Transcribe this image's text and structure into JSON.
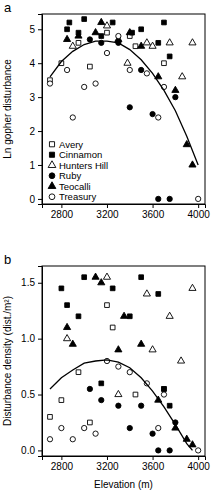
{
  "chart_data": [
    {
      "type": "scatter",
      "title": "a",
      "y_label": "Ln gopher disturbance",
      "xlim": [
        2630,
        4060
      ],
      "xticks": [
        2800,
        3200,
        3600,
        4000
      ],
      "ylim": [
        -0.15,
        5.45
      ],
      "yticks": [
        0,
        1,
        2,
        3,
        4,
        5
      ],
      "grid": false,
      "legend": "lower left",
      "series": [
        {
          "name": "Avery",
          "marker": "square-open",
          "color": "#000000",
          "x": [
            2700,
            2800,
            2950,
            3050,
            3200,
            3400,
            3450,
            3700
          ],
          "values": [
            3.5,
            4.0,
            4.6,
            3.9,
            4.9,
            4.8,
            4.5,
            4.0
          ]
        },
        {
          "name": "Cinnamon",
          "marker": "square",
          "color": "#000000",
          "x": [
            2850,
            2870,
            2950,
            3000,
            3150,
            3250,
            3420,
            3500,
            3650,
            3700,
            3750
          ],
          "values": [
            5.0,
            5.2,
            4.9,
            5.3,
            4.8,
            5.2,
            4.9,
            5.0,
            4.6,
            5.2,
            4.2
          ]
        },
        {
          "name": "Hunters Hill",
          "marker": "triangle-open",
          "color": "#000000",
          "x": [
            2900,
            3200,
            3380,
            3550,
            3600,
            3750,
            3860,
            3950
          ],
          "values": [
            4.5,
            5.1,
            4.0,
            4.6,
            4.5,
            4.6,
            3.6,
            4.6
          ]
        },
        {
          "name": "Ruby",
          "marker": "circle",
          "color": "#000000",
          "x": [
            3050,
            3150,
            3300,
            3400,
            3500,
            3600,
            3650,
            3750,
            3800
          ],
          "values": [
            4.7,
            4.6,
            4.6,
            2.7,
            3.8,
            2.5,
            0.0,
            0.0,
            3.0
          ]
        },
        {
          "name": "Teocalli",
          "marker": "triangle",
          "color": "#000000",
          "x": [
            2850,
            2950,
            3100,
            3150,
            3300,
            3400,
            3500,
            3650,
            3800,
            3900,
            3950
          ],
          "values": [
            4.7,
            4.8,
            4.9,
            5.2,
            4.7,
            4.9,
            4.5,
            3.6,
            3.2,
            1.6,
            1.0
          ]
        },
        {
          "name": "Treasury",
          "marker": "circle-open",
          "color": "#000000",
          "x": [
            2700,
            2850,
            2900,
            3000,
            3100,
            3200,
            3300,
            3400,
            3550,
            3650,
            3700,
            4000
          ],
          "values": [
            3.4,
            3.8,
            2.4,
            3.3,
            3.4,
            4.3,
            4.8,
            3.8,
            3.7,
            2.4,
            3.3,
            0.0
          ]
        },
        {
          "type": "line",
          "color": "#000000",
          "x": [
            2700,
            2800,
            2900,
            3000,
            3100,
            3200,
            3300,
            3400,
            3500,
            3600,
            3700,
            3800,
            3900,
            4000
          ],
          "values": [
            3.6,
            4.05,
            4.35,
            4.55,
            4.65,
            4.65,
            4.6,
            4.4,
            4.1,
            3.7,
            3.2,
            2.6,
            1.85,
            1.0
          ]
        }
      ]
    },
    {
      "type": "scatter",
      "title": "b",
      "x_label": "Elevation (m)",
      "y_label": "Disturbance density (dist./m²)",
      "xlim": [
        2630,
        4060
      ],
      "xticks": [
        2800,
        3200,
        3600,
        4000
      ],
      "ylim": [
        -0.05,
        1.65
      ],
      "yticks": [
        {
          "value": 0,
          "label": "0.0"
        },
        0.5,
        {
          "value": 1,
          "label": "1.0"
        },
        1.5
      ],
      "grid": false,
      "series": [
        {
          "name": "Avery",
          "marker": "square-open",
          "color": "#000000",
          "x": [
            2700,
            2800,
            2950,
            3050,
            3200,
            3250,
            3450,
            3700
          ],
          "values": [
            0.3,
            0.45,
            0.7,
            0.25,
            1.3,
            1.1,
            0.5,
            0.55
          ]
        },
        {
          "name": "Cinnamon",
          "marker": "square",
          "color": "#000000",
          "x": [
            2800,
            2850,
            2950,
            3000,
            3150,
            3250,
            3400,
            3500,
            3650,
            3700,
            3750
          ],
          "values": [
            1.45,
            1.3,
            1.2,
            1.55,
            0.6,
            1.45,
            1.2,
            1.55,
            1.4,
            0.55,
            0.4
          ]
        },
        {
          "name": "Hunters Hill",
          "marker": "triangle-open",
          "color": "#000000",
          "x": [
            2850,
            3200,
            3300,
            3550,
            3600,
            3750,
            3850,
            3950
          ],
          "values": [
            1.0,
            1.55,
            0.5,
            1.4,
            0.9,
            1.2,
            0.8,
            1.45
          ]
        },
        {
          "name": "Ruby",
          "marker": "circle",
          "color": "#000000",
          "x": [
            3050,
            3150,
            3300,
            3400,
            3500,
            3600,
            3650,
            3750,
            3800
          ],
          "values": [
            0.55,
            0.45,
            0.4,
            0.2,
            0.4,
            0.15,
            0.0,
            0.0,
            0.25
          ]
        },
        {
          "name": "Teocalli",
          "marker": "triangle",
          "color": "#000000",
          "x": [
            2850,
            2900,
            3100,
            3150,
            3300,
            3350,
            3500,
            3650,
            3800,
            3900,
            3950
          ],
          "values": [
            1.1,
            0.95,
            1.55,
            1.5,
            0.9,
            1.2,
            0.95,
            0.45,
            0.2,
            0.1,
            0.05
          ]
        },
        {
          "name": "Treasury",
          "marker": "circle-open",
          "color": "#000000",
          "x": [
            2700,
            2800,
            2900,
            3000,
            3100,
            3200,
            3300,
            3400,
            3550,
            3650,
            3700,
            4000
          ],
          "values": [
            0.1,
            0.2,
            0.1,
            0.2,
            0.15,
            0.8,
            0.75,
            0.7,
            0.6,
            0.2,
            0.5,
            0.0
          ]
        },
        {
          "type": "line",
          "color": "#000000",
          "x": [
            2700,
            2800,
            2900,
            3000,
            3100,
            3200,
            3300,
            3400,
            3500,
            3600,
            3700,
            3800,
            3900,
            3950
          ],
          "values": [
            0.55,
            0.65,
            0.72,
            0.78,
            0.8,
            0.81,
            0.79,
            0.74,
            0.65,
            0.53,
            0.39,
            0.23,
            0.06,
            0.0
          ]
        }
      ]
    }
  ]
}
